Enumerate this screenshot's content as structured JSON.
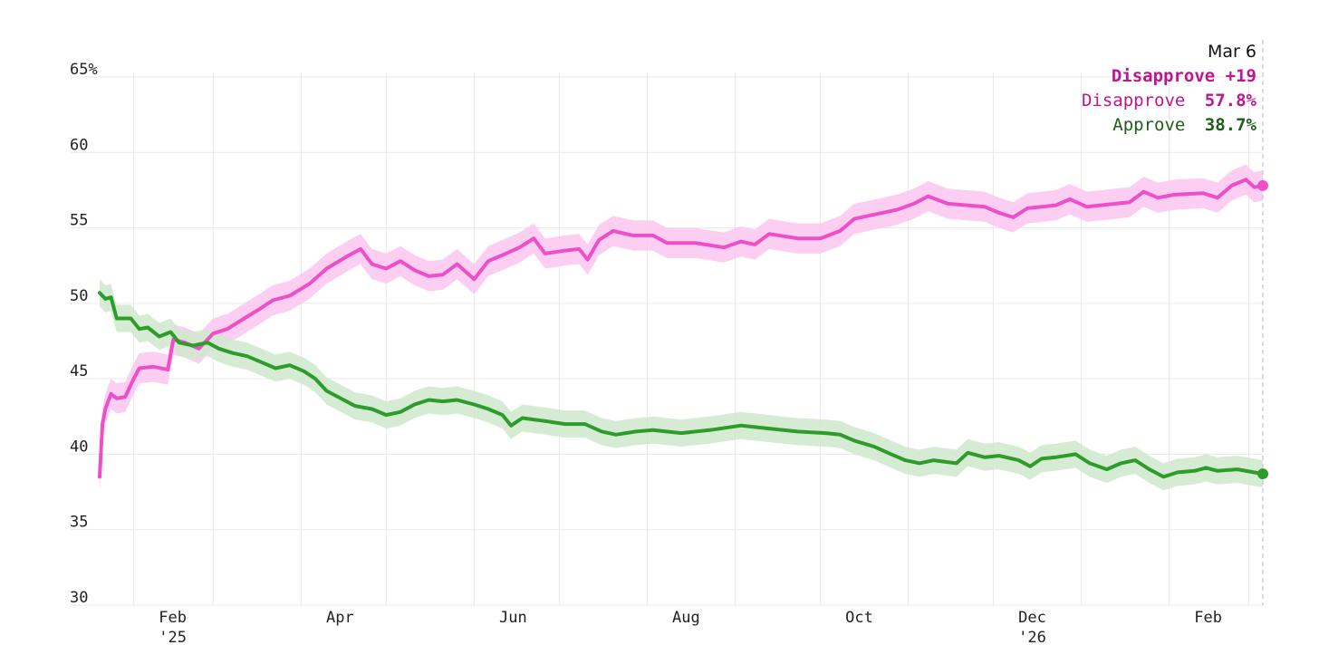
{
  "chart_data": {
    "type": "line",
    "title": "",
    "xlabel": "",
    "ylabel": "",
    "ylim": [
      30,
      65
    ],
    "x_range": [
      "2025-01-20",
      "2026-03-06"
    ],
    "y_ticks": [
      "65%",
      "60",
      "55",
      "50",
      "45",
      "40",
      "35",
      "30"
    ],
    "y_tick_values": [
      65,
      60,
      55,
      50,
      45,
      40,
      35,
      30
    ],
    "x_ticks": [
      {
        "date": "2025-02-01",
        "label": "Feb",
        "sublabel": "'25"
      },
      {
        "date": "2025-04-01",
        "label": "Apr",
        "sublabel": ""
      },
      {
        "date": "2025-06-01",
        "label": "Jun",
        "sublabel": ""
      },
      {
        "date": "2025-08-01",
        "label": "Aug",
        "sublabel": ""
      },
      {
        "date": "2025-10-01",
        "label": "Oct",
        "sublabel": ""
      },
      {
        "date": "2025-12-01",
        "label": "Dec",
        "sublabel": "'26"
      },
      {
        "date": "2026-02-01",
        "label": "Feb",
        "sublabel": ""
      }
    ],
    "gridlines_monthly": [
      "2025-02-01",
      "2025-03-01",
      "2025-04-01",
      "2025-05-01",
      "2025-06-01",
      "2025-07-01",
      "2025-08-01",
      "2025-09-01",
      "2025-10-01",
      "2025-11-01",
      "2025-12-01",
      "2026-01-01",
      "2026-02-01",
      "2026-03-01"
    ],
    "grid": true,
    "legend": "top-right readout",
    "series": [
      {
        "name": "Disapprove",
        "color": "#ee4fc8",
        "band_color": "#fcc5ef",
        "band_halfwidth": 1.0,
        "points": [
          [
            "2025-01-20",
            38.5
          ],
          [
            "2025-01-21",
            42.0
          ],
          [
            "2025-01-22",
            43.0
          ],
          [
            "2025-01-24",
            44.0
          ],
          [
            "2025-01-26",
            43.7
          ],
          [
            "2025-01-29",
            43.8
          ],
          [
            "2025-02-01",
            45.0
          ],
          [
            "2025-02-03",
            45.7
          ],
          [
            "2025-02-08",
            45.8
          ],
          [
            "2025-02-13",
            45.6
          ],
          [
            "2025-02-15",
            47.6
          ],
          [
            "2025-02-19",
            47.4
          ],
          [
            "2025-02-24",
            47.0
          ],
          [
            "2025-03-01",
            48.0
          ],
          [
            "2025-03-06",
            48.3
          ],
          [
            "2025-03-12",
            49.0
          ],
          [
            "2025-03-18",
            49.7
          ],
          [
            "2025-03-22",
            50.2
          ],
          [
            "2025-03-28",
            50.5
          ],
          [
            "2025-04-04",
            51.3
          ],
          [
            "2025-04-10",
            52.3
          ],
          [
            "2025-04-18",
            53.2
          ],
          [
            "2025-04-22",
            53.6
          ],
          [
            "2025-04-26",
            52.6
          ],
          [
            "2025-05-01",
            52.3
          ],
          [
            "2025-05-06",
            52.8
          ],
          [
            "2025-05-11",
            52.2
          ],
          [
            "2025-05-16",
            51.8
          ],
          [
            "2025-05-21",
            51.9
          ],
          [
            "2025-05-26",
            52.6
          ],
          [
            "2025-06-01",
            51.6
          ],
          [
            "2025-06-06",
            52.8
          ],
          [
            "2025-06-11",
            53.2
          ],
          [
            "2025-06-17",
            53.7
          ],
          [
            "2025-06-22",
            54.3
          ],
          [
            "2025-06-26",
            53.3
          ],
          [
            "2025-07-03",
            53.5
          ],
          [
            "2025-07-08",
            53.6
          ],
          [
            "2025-07-11",
            52.9
          ],
          [
            "2025-07-15",
            54.2
          ],
          [
            "2025-07-20",
            54.8
          ],
          [
            "2025-07-27",
            54.5
          ],
          [
            "2025-08-03",
            54.5
          ],
          [
            "2025-08-08",
            54.0
          ],
          [
            "2025-08-18",
            54.0
          ],
          [
            "2025-08-28",
            53.7
          ],
          [
            "2025-09-03",
            54.1
          ],
          [
            "2025-09-08",
            53.9
          ],
          [
            "2025-09-13",
            54.6
          ],
          [
            "2025-09-23",
            54.3
          ],
          [
            "2025-10-01",
            54.3
          ],
          [
            "2025-10-08",
            54.8
          ],
          [
            "2025-10-13",
            55.6
          ],
          [
            "2025-10-18",
            55.8
          ],
          [
            "2025-10-28",
            56.2
          ],
          [
            "2025-11-03",
            56.6
          ],
          [
            "2025-11-08",
            57.1
          ],
          [
            "2025-11-15",
            56.6
          ],
          [
            "2025-11-28",
            56.4
          ],
          [
            "2025-12-03",
            56.0
          ],
          [
            "2025-12-08",
            55.7
          ],
          [
            "2025-12-13",
            56.3
          ],
          [
            "2025-12-23",
            56.5
          ],
          [
            "2025-12-28",
            56.9
          ],
          [
            "2026-01-03",
            56.4
          ],
          [
            "2026-01-13",
            56.6
          ],
          [
            "2026-01-18",
            56.7
          ],
          [
            "2026-01-23",
            57.4
          ],
          [
            "2026-01-28",
            57.0
          ],
          [
            "2026-02-03",
            57.2
          ],
          [
            "2026-02-13",
            57.3
          ],
          [
            "2026-02-18",
            57.0
          ],
          [
            "2026-02-23",
            57.8
          ],
          [
            "2026-02-28",
            58.2
          ],
          [
            "2026-03-03",
            57.7
          ],
          [
            "2026-03-06",
            57.8
          ]
        ]
      },
      {
        "name": "Approve",
        "color": "#2e9c2a",
        "band_color": "#cfe8cc",
        "band_halfwidth": 0.9,
        "points": [
          [
            "2025-01-20",
            50.7
          ],
          [
            "2025-01-22",
            50.3
          ],
          [
            "2025-01-24",
            50.4
          ],
          [
            "2025-01-26",
            49.0
          ],
          [
            "2025-01-31",
            49.0
          ],
          [
            "2025-02-03",
            48.3
          ],
          [
            "2025-02-06",
            48.4
          ],
          [
            "2025-02-10",
            47.8
          ],
          [
            "2025-02-14",
            48.1
          ],
          [
            "2025-02-17",
            47.4
          ],
          [
            "2025-02-22",
            47.2
          ],
          [
            "2025-02-27",
            47.4
          ],
          [
            "2025-03-03",
            47.0
          ],
          [
            "2025-03-08",
            46.7
          ],
          [
            "2025-03-13",
            46.5
          ],
          [
            "2025-03-18",
            46.1
          ],
          [
            "2025-03-23",
            45.7
          ],
          [
            "2025-03-28",
            45.9
          ],
          [
            "2025-04-02",
            45.5
          ],
          [
            "2025-04-06",
            45.0
          ],
          [
            "2025-04-10",
            44.2
          ],
          [
            "2025-04-14",
            43.8
          ],
          [
            "2025-04-20",
            43.2
          ],
          [
            "2025-04-26",
            43.0
          ],
          [
            "2025-05-01",
            42.6
          ],
          [
            "2025-05-06",
            42.8
          ],
          [
            "2025-05-11",
            43.3
          ],
          [
            "2025-05-16",
            43.6
          ],
          [
            "2025-05-21",
            43.5
          ],
          [
            "2025-05-26",
            43.6
          ],
          [
            "2025-06-01",
            43.3
          ],
          [
            "2025-06-06",
            43.0
          ],
          [
            "2025-06-11",
            42.6
          ],
          [
            "2025-06-14",
            41.9
          ],
          [
            "2025-06-18",
            42.4
          ],
          [
            "2025-06-26",
            42.2
          ],
          [
            "2025-07-03",
            42.0
          ],
          [
            "2025-07-10",
            42.0
          ],
          [
            "2025-07-16",
            41.5
          ],
          [
            "2025-07-21",
            41.3
          ],
          [
            "2025-07-28",
            41.5
          ],
          [
            "2025-08-03",
            41.6
          ],
          [
            "2025-08-13",
            41.4
          ],
          [
            "2025-08-23",
            41.6
          ],
          [
            "2025-09-03",
            41.9
          ],
          [
            "2025-09-13",
            41.7
          ],
          [
            "2025-09-23",
            41.5
          ],
          [
            "2025-10-03",
            41.4
          ],
          [
            "2025-10-08",
            41.3
          ],
          [
            "2025-10-13",
            40.9
          ],
          [
            "2025-10-20",
            40.5
          ],
          [
            "2025-10-26",
            40.0
          ],
          [
            "2025-10-31",
            39.6
          ],
          [
            "2025-11-05",
            39.4
          ],
          [
            "2025-11-10",
            39.6
          ],
          [
            "2025-11-18",
            39.4
          ],
          [
            "2025-11-22",
            40.1
          ],
          [
            "2025-11-28",
            39.8
          ],
          [
            "2025-12-03",
            39.9
          ],
          [
            "2025-12-10",
            39.6
          ],
          [
            "2025-12-14",
            39.2
          ],
          [
            "2025-12-18",
            39.7
          ],
          [
            "2025-12-23",
            39.8
          ],
          [
            "2025-12-30",
            40.0
          ],
          [
            "2026-01-04",
            39.4
          ],
          [
            "2026-01-10",
            39.0
          ],
          [
            "2026-01-15",
            39.4
          ],
          [
            "2026-01-20",
            39.6
          ],
          [
            "2026-01-25",
            39.0
          ],
          [
            "2026-01-30",
            38.5
          ],
          [
            "2026-02-04",
            38.8
          ],
          [
            "2026-02-10",
            38.9
          ],
          [
            "2026-02-14",
            39.1
          ],
          [
            "2026-02-18",
            38.9
          ],
          [
            "2026-02-25",
            39.0
          ],
          [
            "2026-03-06",
            38.7
          ]
        ]
      }
    ]
  },
  "readout": {
    "date": "Mar 6",
    "net_label": "Disapprove +19",
    "disapprove_label": "Disapprove",
    "disapprove_value": "57.8%",
    "approve_label": "Approve",
    "approve_value": "38.7%",
    "disapprove_text_color": "#c0158f",
    "approve_text_color": "#1e5e18"
  }
}
